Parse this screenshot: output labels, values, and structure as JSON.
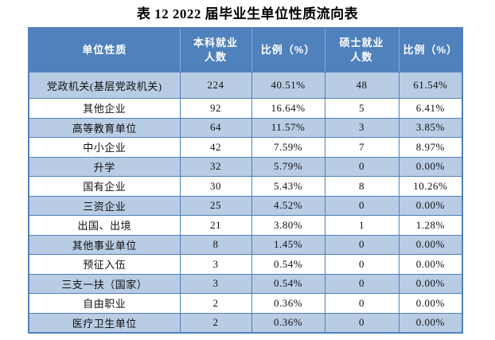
{
  "title": "表 12 2022 届毕业生单位性质流向表",
  "table": {
    "columns": [
      "单位性质",
      "本科就业\n人数",
      "比例（%）",
      "硕士就业\n人数",
      "比例（%）"
    ],
    "rows": [
      [
        "党政机关(基层党政机关)",
        "224",
        "40.51%",
        "48",
        "61.54%"
      ],
      [
        "其他企业",
        "92",
        "16.64%",
        "5",
        "6.41%"
      ],
      [
        "高等教育单位",
        "64",
        "11.57%",
        "3",
        "3.85%"
      ],
      [
        "中小企业",
        "42",
        "7.59%",
        "7",
        "8.97%"
      ],
      [
        "升学",
        "32",
        "5.79%",
        "0",
        "0.00%"
      ],
      [
        "国有企业",
        "30",
        "5.43%",
        "8",
        "10.26%"
      ],
      [
        "三资企业",
        "25",
        "4.52%",
        "0",
        "0.00%"
      ],
      [
        "出国、出境",
        "21",
        "3.80%",
        "1",
        "1.28%"
      ],
      [
        "其他事业单位",
        "8",
        "1.45%",
        "0",
        "0.00%"
      ],
      [
        "预征入伍",
        "3",
        "0.54%",
        "0",
        "0.00%"
      ],
      [
        "三支一扶（国家）",
        "3",
        "0.54%",
        "0",
        "0.00%"
      ],
      [
        "自由职业",
        "2",
        "0.36%",
        "0",
        "0.00%"
      ],
      [
        "医疗卫生单位",
        "2",
        "0.36%",
        "0",
        "0.00%"
      ]
    ]
  },
  "colors": {
    "header_bg": "#4f81bd",
    "header_text": "#ffffff",
    "row_alt_bg": "#b8cce4",
    "row_bg": "#ffffff",
    "border": "#4f81bd",
    "title_text": "#000000"
  }
}
